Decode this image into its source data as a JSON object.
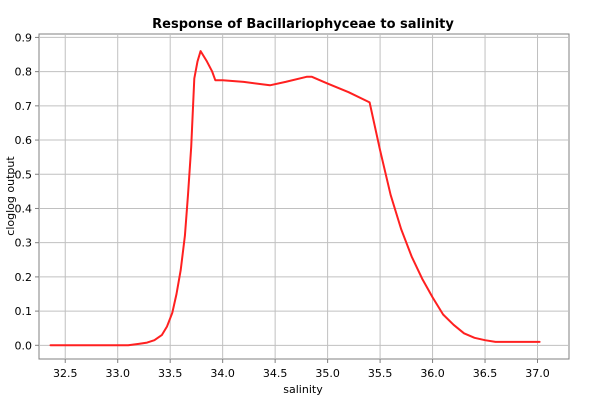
{
  "chart_data": {
    "type": "line",
    "title": "Response of Bacillariophyceae to salinity",
    "xlabel": "salinity",
    "ylabel": "cloglog output",
    "xlim": [
      32.25,
      37.3
    ],
    "ylim": [
      -0.04,
      0.91
    ],
    "xticks": [
      "32.5",
      "33.0",
      "33.5",
      "34.0",
      "34.5",
      "35.0",
      "35.5",
      "36.0",
      "36.5",
      "37.0"
    ],
    "yticks": [
      "0.0",
      "0.1",
      "0.2",
      "0.3",
      "0.4",
      "0.5",
      "0.6",
      "0.7",
      "0.8",
      "0.9"
    ],
    "grid": true,
    "legend": "none",
    "series": [
      {
        "color": "#ff2020",
        "x": [
          32.36,
          32.6,
          32.8,
          33.0,
          33.1,
          33.2,
          33.28,
          33.35,
          33.42,
          33.47,
          33.52,
          33.56,
          33.6,
          33.64,
          33.67,
          33.7,
          33.73,
          33.76,
          33.79,
          33.85,
          33.9,
          33.93,
          34.0,
          34.2,
          34.45,
          34.6,
          34.8,
          34.85,
          35.0,
          35.2,
          35.4,
          35.5,
          35.6,
          35.7,
          35.8,
          35.9,
          36.0,
          36.1,
          36.2,
          36.3,
          36.4,
          36.5,
          36.6,
          36.8,
          37.02
        ],
        "y": [
          0.0,
          0.0,
          0.0,
          0.0,
          0.0,
          0.004,
          0.008,
          0.015,
          0.03,
          0.055,
          0.095,
          0.15,
          0.22,
          0.32,
          0.44,
          0.58,
          0.78,
          0.83,
          0.86,
          0.83,
          0.8,
          0.775,
          0.775,
          0.77,
          0.76,
          0.77,
          0.785,
          0.785,
          0.765,
          0.74,
          0.71,
          0.57,
          0.44,
          0.34,
          0.26,
          0.195,
          0.14,
          0.09,
          0.06,
          0.035,
          0.022,
          0.015,
          0.01,
          0.01,
          0.01
        ]
      }
    ]
  }
}
